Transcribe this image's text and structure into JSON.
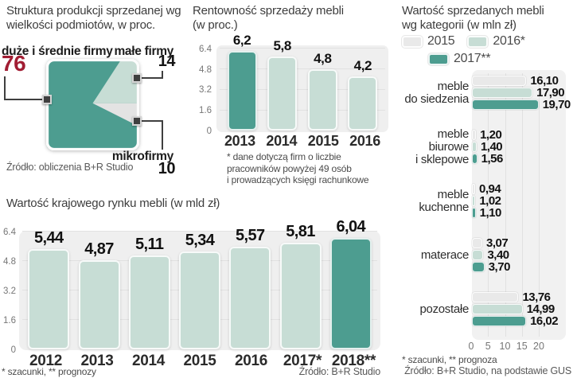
{
  "colors": {
    "teal_dark": "#4D9D90",
    "teal_light": "#C7DDD5",
    "bar_gray": "#E9E9E9",
    "plot_bg": "#EFEFEF",
    "grid": "#E1E1E1",
    "accent_red": "#A11D33",
    "wedge_gray": "#E3E3E3",
    "marker_dark": "#3F3F3F"
  },
  "panel_structure": {
    "title": "Struktura produkcji sprzedanej wg\nwielkości podmiotów, w proc.",
    "label_large": "duże i średnie firmy",
    "value_large": "76",
    "label_small": "małe firmy",
    "value_small": "14",
    "label_micro": "mikrofirmy",
    "value_micro": "10",
    "source": "Źródło: obliczenia B+R Studio"
  },
  "panel_profitability": {
    "title": "Rentowność sprzedaży mebli\n(w proc.)",
    "footnote": "* dane dotyczą firm o liczbie\npracowników powyżej 49 osób\ni prowadzących księgi rachunkowe"
  },
  "panel_market": {
    "title": "Wartość krajowego rynku mebli (w mld zł)",
    "footnote": "* szacunki, ** prognozy",
    "source": "Źródło: B+R Studio"
  },
  "panel_categories": {
    "title": "Wartość sprzedanych mebli\nwg kategorii (w mln zł)",
    "legend": [
      "2015",
      "2016*",
      "2017**"
    ],
    "footnote": "* szacunki, ** prognoza",
    "source": "Źródło: B+R Studio, na podstawie GUS"
  },
  "chart_data": [
    {
      "id": "structure",
      "type": "pie",
      "title": "Struktura produkcji sprzedanej wg wielkości podmiotów, w proc.",
      "categories": [
        "duże i średnie firmy",
        "małe firmy",
        "mikrofirmy"
      ],
      "values": [
        76,
        14,
        10
      ],
      "unit": "proc."
    },
    {
      "id": "profitability",
      "type": "bar",
      "title": "Rentowność sprzedaży mebli (w proc.)",
      "categories": [
        "2013",
        "2014",
        "2015",
        "2016"
      ],
      "values": [
        6.2,
        5.8,
        4.8,
        4.2
      ],
      "value_labels": [
        "6,2",
        "5,8",
        "4,8",
        "4,2"
      ],
      "ylim": [
        0,
        6.4
      ],
      "yticks": [
        "6.4",
        "4.8",
        "3.2",
        "1.6",
        "0"
      ],
      "highlight_index": 0,
      "grid": true
    },
    {
      "id": "market",
      "type": "bar",
      "title": "Wartość krajowego rynku mebli (w mld zł)",
      "categories": [
        "2012",
        "2013",
        "2014",
        "2015",
        "2016",
        "2017*",
        "2018**"
      ],
      "values": [
        5.44,
        4.87,
        5.11,
        5.34,
        5.57,
        5.81,
        6.04
      ],
      "value_labels": [
        "5,44",
        "4,87",
        "5,11",
        "5,34",
        "5,57",
        "5,81",
        "6,04"
      ],
      "ylim": [
        0,
        6.4
      ],
      "yticks": [
        "6.4",
        "4.8",
        "3.2",
        "1.6",
        "0"
      ],
      "highlight_index": 6,
      "grid": true
    },
    {
      "id": "categories",
      "type": "bar-horizontal",
      "title": "Wartość sprzedanych mebli wg kategorii (w mln zł)",
      "categories": [
        "meble\ndo siedzenia",
        "meble\nbiurowe\ni sklepowe",
        "meble\nkuchenne",
        "materace",
        "pozostałe"
      ],
      "series": [
        {
          "name": "2015",
          "values": [
            16.1,
            1.2,
            0.94,
            3.07,
            13.76
          ]
        },
        {
          "name": "2016*",
          "values": [
            17.9,
            1.4,
            1.02,
            3.4,
            14.99
          ]
        },
        {
          "name": "2017**",
          "values": [
            19.7,
            1.56,
            1.1,
            3.7,
            16.02
          ]
        }
      ],
      "value_labels": [
        [
          "16,10",
          "1,20",
          "0,94",
          "3,07",
          "13,76"
        ],
        [
          "17,90",
          "1,40",
          "1,02",
          "3,40",
          "14,99"
        ],
        [
          "19,70",
          "1,56",
          "1,10",
          "3,70",
          "16,02"
        ]
      ],
      "xlim": [
        0,
        20
      ],
      "xticks": [
        0,
        5,
        10,
        15,
        20
      ],
      "legend_position": "top",
      "grid": true
    }
  ]
}
